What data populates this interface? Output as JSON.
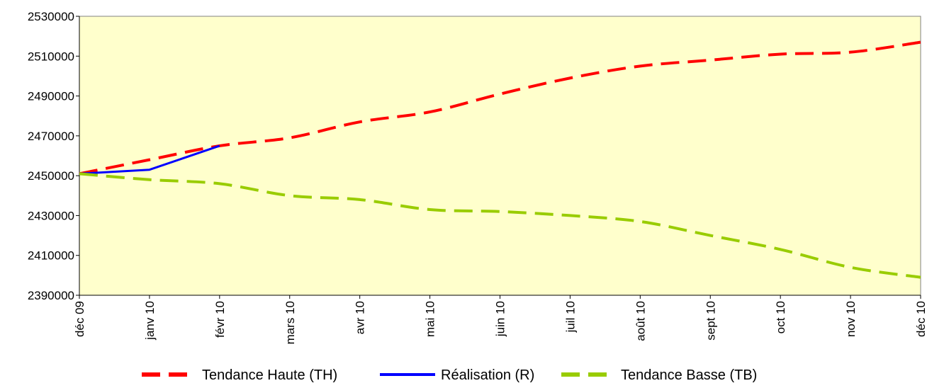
{
  "chart_data": {
    "type": "line",
    "title": "",
    "xlabel": "",
    "ylabel": "",
    "categories": [
      "déc 09",
      "janv 10",
      "févr 10",
      "mars 10",
      "avr 10",
      "mai 10",
      "juin 10",
      "juil 10",
      "août 10",
      "sept 10",
      "oct 10",
      "nov 10",
      "déc 10"
    ],
    "ylim": [
      2390000,
      2530000
    ],
    "yticks": [
      "2530000",
      "2510000",
      "2490000",
      "2470000",
      "2450000",
      "2430000",
      "2410000",
      "2390000"
    ],
    "grid": false,
    "legend_position": "bottom",
    "plot_background": "#FFFFCC",
    "series": [
      {
        "name": "Tendance Haute (TH)",
        "color": "#FF0000",
        "style": "dashed",
        "values": [
          2451000,
          2458000,
          2465000,
          2469000,
          2477000,
          2482000,
          2491000,
          2499000,
          2505000,
          2508000,
          2511000,
          2512000,
          2517000
        ]
      },
      {
        "name": "Réalisation (R)",
        "color": "#0000FF",
        "style": "solid",
        "values": [
          2451000,
          2453000,
          2465000,
          null,
          null,
          null,
          null,
          null,
          null,
          null,
          null,
          null,
          null
        ]
      },
      {
        "name": "Tendance Basse (TB)",
        "color": "#99CC00",
        "style": "dashed",
        "values": [
          2451000,
          2448000,
          2446000,
          2440000,
          2438000,
          2433000,
          2432000,
          2430000,
          2427000,
          2420000,
          2413000,
          2404000,
          2399000
        ]
      }
    ]
  }
}
